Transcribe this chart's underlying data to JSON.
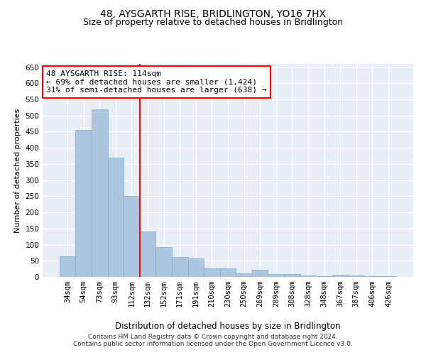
{
  "title": "48, AYSGARTH RISE, BRIDLINGTON, YO16 7HX",
  "subtitle": "Size of property relative to detached houses in Bridlington",
  "xlabel": "Distribution of detached houses by size in Bridlington",
  "ylabel": "Number of detached properties",
  "categories": [
    "34sqm",
    "54sqm",
    "73sqm",
    "93sqm",
    "112sqm",
    "132sqm",
    "152sqm",
    "171sqm",
    "191sqm",
    "210sqm",
    "230sqm",
    "250sqm",
    "269sqm",
    "289sqm",
    "308sqm",
    "328sqm",
    "348sqm",
    "367sqm",
    "387sqm",
    "406sqm",
    "426sqm"
  ],
  "values": [
    63,
    456,
    520,
    370,
    250,
    140,
    93,
    62,
    57,
    27,
    27,
    10,
    23,
    8,
    8,
    5,
    2,
    7,
    5,
    3,
    3
  ],
  "bar_color": "#adc6e0",
  "bar_edge_color": "#85aacb",
  "annotation_text_line1": "48 AYSGARTH RISE: 114sqm",
  "annotation_text_line2": "← 69% of detached houses are smaller (1,424)",
  "annotation_text_line3": "31% of semi-detached houses are larger (638) →",
  "annotation_box_color": "white",
  "annotation_box_edge_color": "red",
  "vline_color": "red",
  "vline_x_index": 4,
  "ylim": [
    0,
    660
  ],
  "yticks": [
    0,
    50,
    100,
    150,
    200,
    250,
    300,
    350,
    400,
    450,
    500,
    550,
    600,
    650
  ],
  "background_color": "#e8eef5",
  "footer_line1": "Contains HM Land Registry data © Crown copyright and database right 2024.",
  "footer_line2": "Contains public sector information licensed under the Open Government Licence v3.0.",
  "title_fontsize": 10,
  "subtitle_fontsize": 9,
  "xlabel_fontsize": 8.5,
  "ylabel_fontsize": 8,
  "tick_fontsize": 7.5,
  "annotation_fontsize": 8,
  "footer_fontsize": 6.5
}
